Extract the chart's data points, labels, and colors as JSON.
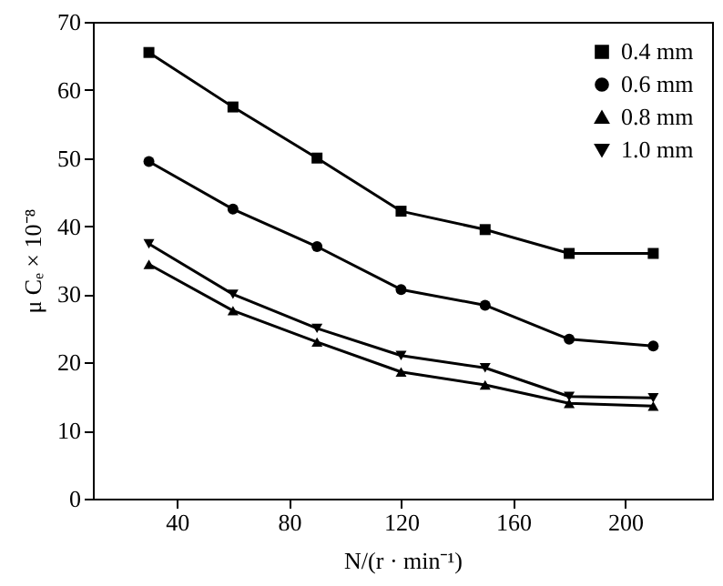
{
  "chart_data": {
    "type": "line",
    "xlabel": "N/(r · min⁻¹)",
    "ylabel": "μ Cₑ × 10⁻⁸",
    "x": [
      30,
      60,
      90,
      120,
      150,
      180,
      210
    ],
    "series": [
      {
        "name": "0.4 mm",
        "color": "#000000",
        "marker": "square",
        "values": [
          65.5,
          57.5,
          50,
          42.2,
          39.5,
          36,
          36
        ]
      },
      {
        "name": "0.6 mm",
        "color": "#000000",
        "marker": "circle",
        "values": [
          49.5,
          42.5,
          37,
          30.7,
          28.4,
          23.4,
          22.4
        ]
      },
      {
        "name": "0.8 mm",
        "color": "#000000",
        "marker": "triangle",
        "values": [
          34.4,
          27.6,
          23,
          18.6,
          16.7,
          14,
          13.6
        ]
      },
      {
        "name": "1.0 mm",
        "color": "#000000",
        "marker": "triangle-down",
        "values": [
          37.4,
          30,
          25,
          21,
          19.2,
          15,
          14.8
        ]
      }
    ],
    "xlim": [
      10,
      231
    ],
    "xticks": [
      40,
      80,
      120,
      160,
      200
    ],
    "ylim": [
      0,
      70
    ],
    "yticks": [
      0,
      10,
      20,
      30,
      40,
      50,
      60,
      70
    ],
    "grid": false,
    "legend": "top right",
    "line_style": "solid"
  }
}
